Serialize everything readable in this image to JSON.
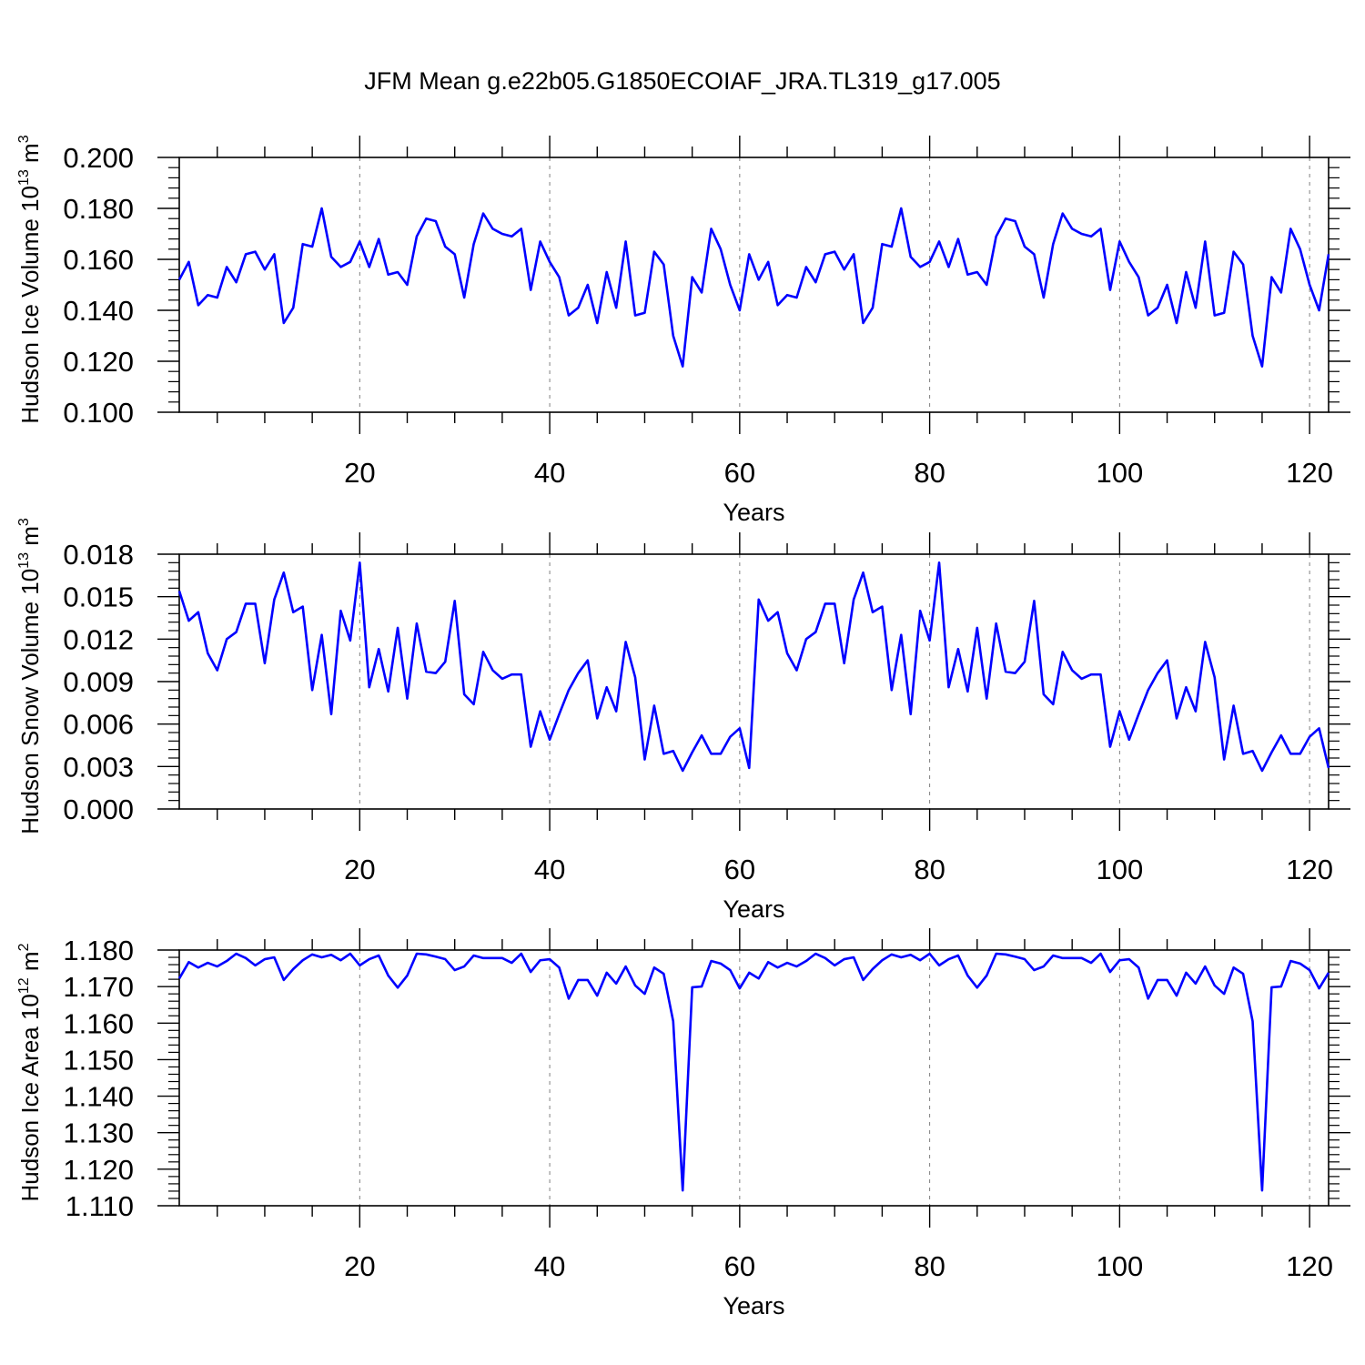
{
  "title": "JFM Mean g.e22b05.G1850ECOIAF_JRA.TL319_g17.005",
  "colors": {
    "series": "#0000ff",
    "axis": "#000000",
    "grid": "#808080"
  },
  "chart_data": [
    {
      "type": "line",
      "xlabel": "Years",
      "ylabel": {
        "prefix": "Hudson Ice Volume 10",
        "exp": "13",
        "unit": " m",
        "unit_exp": "3"
      },
      "xlim": [
        1,
        122
      ],
      "ylim": [
        0.1,
        0.2
      ],
      "x_ticks": [
        20,
        40,
        60,
        80,
        100,
        120
      ],
      "x_tick_labels": [
        "20",
        "40",
        "60",
        "80",
        "100",
        "120"
      ],
      "y_ticks": [
        0.1,
        0.12,
        0.14,
        0.16,
        0.18,
        0.2
      ],
      "y_tick_labels": [
        "0.100",
        "0.120",
        "0.140",
        "0.160",
        "0.180",
        "0.200"
      ],
      "grid": "vertical dashed at major x ticks",
      "series": [
        {
          "x_start": 1,
          "values": [
            0.152,
            0.159,
            0.142,
            0.146,
            0.145,
            0.157,
            0.151,
            0.162,
            0.163,
            0.156,
            0.162,
            0.135,
            0.141,
            0.166,
            0.165,
            0.18,
            0.161,
            0.157,
            0.159,
            0.167,
            0.157,
            0.168,
            0.154,
            0.155,
            0.15,
            0.169,
            0.176,
            0.175,
            0.165,
            0.162,
            0.145,
            0.166,
            0.178,
            0.172,
            0.17,
            0.169,
            0.172,
            0.148,
            0.167,
            0.159,
            0.153,
            0.138,
            0.141,
            0.15,
            0.135,
            0.155,
            0.141,
            0.167,
            0.138,
            0.139,
            0.163,
            0.158,
            0.13,
            0.118,
            0.153,
            0.147,
            0.172,
            0.164,
            0.15,
            0.14,
            0.162,
            0.152,
            0.159,
            0.142,
            0.146,
            0.145,
            0.157,
            0.151,
            0.162,
            0.163,
            0.156,
            0.162,
            0.135,
            0.141,
            0.166,
            0.165,
            0.18,
            0.161,
            0.157,
            0.159,
            0.167,
            0.157,
            0.168,
            0.154,
            0.155,
            0.15,
            0.169,
            0.176,
            0.175,
            0.165,
            0.162,
            0.145,
            0.166,
            0.178,
            0.172,
            0.17,
            0.169,
            0.172,
            0.148,
            0.167,
            0.159,
            0.153,
            0.138,
            0.141,
            0.15,
            0.135,
            0.155,
            0.141,
            0.167,
            0.138,
            0.139,
            0.163,
            0.158,
            0.13,
            0.118,
            0.153,
            0.147,
            0.172,
            0.164,
            0.15,
            0.14,
            0.162
          ]
        }
      ]
    },
    {
      "type": "line",
      "xlabel": "Years",
      "ylabel": {
        "prefix": "Hudson Snow Volume 10",
        "exp": "13",
        "unit": " m",
        "unit_exp": "3"
      },
      "xlim": [
        1,
        122
      ],
      "ylim": [
        0.0,
        0.018
      ],
      "x_ticks": [
        20,
        40,
        60,
        80,
        100,
        120
      ],
      "x_tick_labels": [
        "20",
        "40",
        "60",
        "80",
        "100",
        "120"
      ],
      "y_ticks": [
        0.0,
        0.003,
        0.006,
        0.009,
        0.012,
        0.015,
        0.018
      ],
      "y_tick_labels": [
        "0.000",
        "0.003",
        "0.006",
        "0.009",
        "0.012",
        "0.015",
        "0.018"
      ],
      "grid": "vertical dashed at major x ticks",
      "series": [
        {
          "x_start": 1,
          "values": [
            0.0154,
            0.0133,
            0.0139,
            0.011,
            0.0098,
            0.012,
            0.0125,
            0.0145,
            0.0145,
            0.0103,
            0.0148,
            0.0167,
            0.0139,
            0.0143,
            0.0084,
            0.0123,
            0.0067,
            0.014,
            0.0119,
            0.0174,
            0.0086,
            0.0113,
            0.0083,
            0.0128,
            0.0078,
            0.0131,
            0.0097,
            0.0096,
            0.0104,
            0.0147,
            0.0081,
            0.0074,
            0.0111,
            0.0098,
            0.0092,
            0.0095,
            0.0095,
            0.0044,
            0.0069,
            0.0049,
            0.0067,
            0.0084,
            0.0096,
            0.0105,
            0.0064,
            0.0086,
            0.0069,
            0.0118,
            0.0093,
            0.0035,
            0.0073,
            0.0039,
            0.0041,
            0.0027,
            0.004,
            0.0052,
            0.0039,
            0.0039,
            0.0051,
            0.0057,
            0.0029,
            0.0148,
            0.0133,
            0.0139,
            0.011,
            0.0098,
            0.012,
            0.0125,
            0.0145,
            0.0145,
            0.0103,
            0.0148,
            0.0167,
            0.0139,
            0.0143,
            0.0084,
            0.0123,
            0.0067,
            0.014,
            0.0119,
            0.0174,
            0.0086,
            0.0113,
            0.0083,
            0.0128,
            0.0078,
            0.0131,
            0.0097,
            0.0096,
            0.0104,
            0.0147,
            0.0081,
            0.0074,
            0.0111,
            0.0098,
            0.0092,
            0.0095,
            0.0095,
            0.0044,
            0.0069,
            0.0049,
            0.0067,
            0.0084,
            0.0096,
            0.0105,
            0.0064,
            0.0086,
            0.0069,
            0.0118,
            0.0093,
            0.0035,
            0.0073,
            0.0039,
            0.0041,
            0.0027,
            0.004,
            0.0052,
            0.0039,
            0.0039,
            0.0051,
            0.0057,
            0.0029
          ]
        }
      ]
    },
    {
      "type": "line",
      "xlabel": "Years",
      "ylabel": {
        "prefix": "Hudson Ice Area 10",
        "exp": "12",
        "unit": " m",
        "unit_exp": "2"
      },
      "xlim": [
        1,
        122
      ],
      "ylim": [
        1.11,
        1.18
      ],
      "x_ticks": [
        20,
        40,
        60,
        80,
        100,
        120
      ],
      "x_tick_labels": [
        "20",
        "40",
        "60",
        "80",
        "100",
        "120"
      ],
      "y_ticks": [
        1.11,
        1.12,
        1.13,
        1.14,
        1.15,
        1.16,
        1.17,
        1.18
      ],
      "y_tick_labels": [
        "1.110",
        "1.120",
        "1.130",
        "1.140",
        "1.150",
        "1.160",
        "1.170",
        "1.180"
      ],
      "grid": "vertical dashed at major x ticks",
      "series": [
        {
          "x_start": 1,
          "values": [
            1.1722,
            1.1767,
            1.1752,
            1.1765,
            1.1755,
            1.177,
            1.179,
            1.1778,
            1.1758,
            1.1775,
            1.178,
            1.1718,
            1.1748,
            1.1772,
            1.1788,
            1.178,
            1.1787,
            1.1772,
            1.179,
            1.1758,
            1.1775,
            1.1785,
            1.173,
            1.1697,
            1.173,
            1.179,
            1.1788,
            1.1782,
            1.1775,
            1.1745,
            1.1755,
            1.1785,
            1.1778,
            1.1778,
            1.1778,
            1.1765,
            1.179,
            1.174,
            1.1772,
            1.1775,
            1.1752,
            1.1667,
            1.1718,
            1.1718,
            1.1675,
            1.1738,
            1.1708,
            1.1755,
            1.1703,
            1.168,
            1.1752,
            1.1735,
            1.1605,
            1.1142,
            1.1698,
            1.17,
            1.177,
            1.1763,
            1.1745,
            1.1695,
            1.1738,
            1.1722,
            1.1767,
            1.1752,
            1.1765,
            1.1755,
            1.177,
            1.179,
            1.1778,
            1.1758,
            1.1775,
            1.178,
            1.1718,
            1.1748,
            1.1772,
            1.1788,
            1.178,
            1.1787,
            1.1772,
            1.179,
            1.1758,
            1.1775,
            1.1785,
            1.173,
            1.1697,
            1.173,
            1.179,
            1.1788,
            1.1782,
            1.1775,
            1.1745,
            1.1755,
            1.1785,
            1.1778,
            1.1778,
            1.1778,
            1.1765,
            1.179,
            1.174,
            1.1772,
            1.1775,
            1.1752,
            1.1667,
            1.1718,
            1.1718,
            1.1675,
            1.1738,
            1.1708,
            1.1755,
            1.1703,
            1.168,
            1.1752,
            1.1735,
            1.1605,
            1.1142,
            1.1698,
            1.17,
            1.177,
            1.1763,
            1.1745,
            1.1695,
            1.1738
          ]
        }
      ]
    }
  ]
}
